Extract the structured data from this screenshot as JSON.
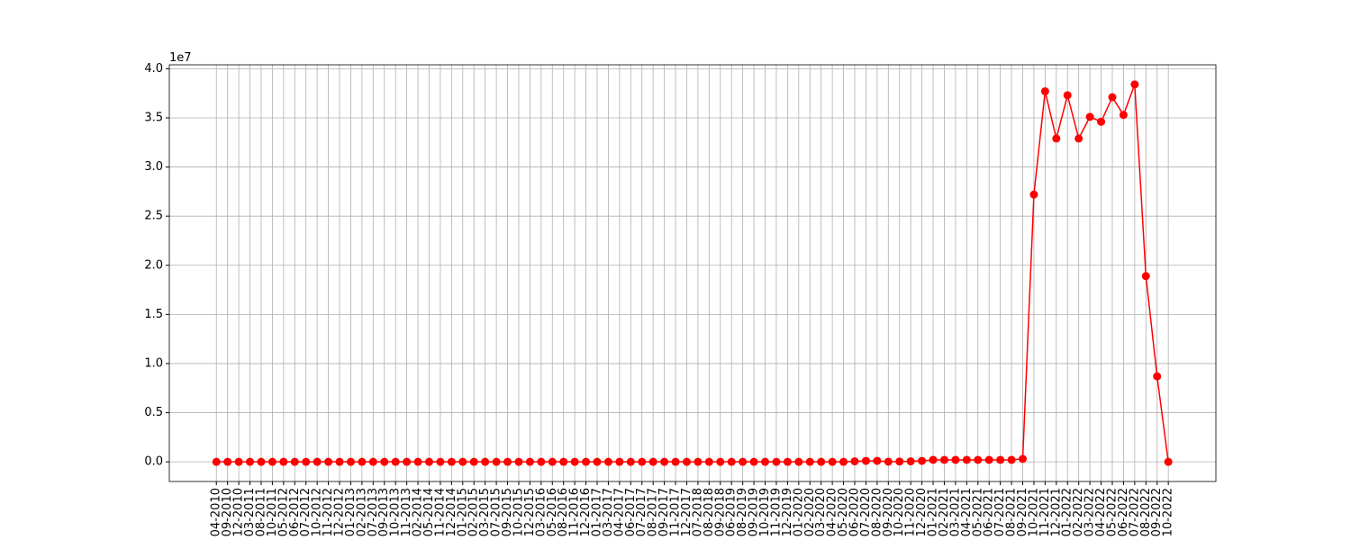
{
  "chart_data": {
    "type": "line",
    "y_offset_label": "1e7",
    "categories": [
      "04-2010",
      "09-2010",
      "12-2010",
      "03-2011",
      "08-2011",
      "10-2011",
      "05-2012",
      "06-2012",
      "07-2012",
      "10-2012",
      "11-2012",
      "12-2012",
      "01-2013",
      "02-2013",
      "07-2013",
      "09-2013",
      "10-2013",
      "11-2013",
      "02-2014",
      "05-2014",
      "11-2014",
      "12-2014",
      "01-2015",
      "02-2015",
      "03-2015",
      "07-2015",
      "09-2015",
      "10-2015",
      "12-2015",
      "03-2016",
      "05-2016",
      "08-2016",
      "11-2016",
      "12-2016",
      "01-2017",
      "03-2017",
      "04-2017",
      "06-2017",
      "07-2017",
      "08-2017",
      "09-2017",
      "11-2017",
      "12-2017",
      "07-2018",
      "08-2018",
      "09-2018",
      "06-2019",
      "08-2019",
      "09-2019",
      "10-2019",
      "11-2019",
      "12-2019",
      "01-2020",
      "02-2020",
      "03-2020",
      "04-2020",
      "05-2020",
      "06-2020",
      "07-2020",
      "08-2020",
      "09-2020",
      "10-2020",
      "11-2020",
      "12-2020",
      "01-2021",
      "02-2021",
      "03-2021",
      "04-2021",
      "05-2021",
      "06-2021",
      "07-2021",
      "08-2021",
      "09-2021",
      "10-2021",
      "11-2021",
      "12-2021",
      "01-2022",
      "02-2022",
      "03-2022",
      "04-2022",
      "05-2022",
      "06-2022",
      "07-2022",
      "08-2022",
      "09-2022",
      "10-2022"
    ],
    "series": [
      {
        "color": "#ff0000",
        "values": [
          0,
          0,
          0,
          0,
          0,
          0,
          0,
          0,
          0,
          0,
          0,
          0,
          0,
          0,
          0,
          0,
          0,
          0,
          0,
          0,
          0,
          0,
          0,
          0,
          0,
          0,
          0,
          0,
          0,
          0,
          0,
          0,
          0,
          0,
          0,
          0,
          0,
          0,
          0,
          0,
          0,
          0,
          0,
          0,
          0,
          0,
          0,
          0,
          0,
          0,
          0,
          0,
          0,
          0,
          0,
          0,
          0,
          50000,
          100000,
          100000,
          20000,
          30000,
          50000,
          100000,
          200000,
          200000,
          200000,
          200000,
          200000,
          200000,
          200000,
          200000,
          300000,
          27200000,
          37700000,
          32900000,
          37300000,
          32900000,
          35100000,
          34600000,
          37100000,
          35300000,
          38400000,
          18900000,
          8700000,
          0
        ]
      }
    ],
    "ylim": [
      -2000000,
      40400000
    ],
    "yticks": [
      {
        "value": 0,
        "label": "0.0"
      },
      {
        "value": 5000000,
        "label": "0.5"
      },
      {
        "value": 10000000,
        "label": "1.0"
      },
      {
        "value": 15000000,
        "label": "1.5"
      },
      {
        "value": 20000000,
        "label": "2.0"
      },
      {
        "value": 25000000,
        "label": "2.5"
      },
      {
        "value": 30000000,
        "label": "3.0"
      },
      {
        "value": 35000000,
        "label": "3.5"
      },
      {
        "value": 40000000,
        "label": "4.0"
      }
    ],
    "grid": true
  }
}
